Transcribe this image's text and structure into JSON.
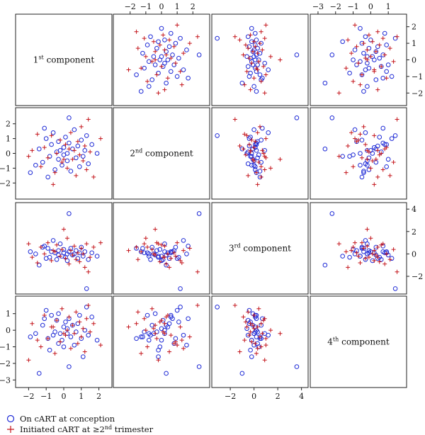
{
  "chart_data": {
    "type": "scatter",
    "title": "",
    "layout": "scatterplot-matrix",
    "variables": [
      {
        "name": "1st",
        "sup": "st",
        "num": "1",
        "label": "component",
        "range": [
          -2.5,
          2.5
        ],
        "ticks": [
          -2,
          -1,
          0,
          1,
          2
        ]
      },
      {
        "name": "2nd",
        "sup": "nd",
        "num": "2",
        "label": "component",
        "range": [
          -2.8,
          2.8
        ],
        "ticks": [
          -2,
          -1,
          0,
          1,
          2
        ]
      },
      {
        "name": "3rd",
        "sup": "rd",
        "num": "3",
        "label": "component",
        "range": [
          -3.2,
          4.2
        ],
        "ticks": [
          -2,
          0,
          2,
          4
        ]
      },
      {
        "name": "4th",
        "sup": "th",
        "num": "4",
        "label": "component",
        "range": [
          -3.2,
          1.8
        ],
        "ticks": [
          -3,
          -2,
          -1,
          0,
          1
        ]
      }
    ],
    "legend": {
      "placement": "bottom-left",
      "items": [
        {
          "label": "On cART at conception",
          "marker": "circle",
          "color": "#1f2bd6"
        },
        {
          "label_prefix": "Initiated cART at ≥2",
          "label_sup": "nd",
          "label_suffix": " trimester",
          "marker": "plus",
          "color": "#c4161c"
        }
      ]
    },
    "series": [
      {
        "name": "On cART at conception",
        "points": [
          [
            -1.6,
            -0.8,
            0.0,
            -0.2
          ],
          [
            -1.4,
            0.3,
            -1.0,
            -2.6
          ],
          [
            -1.2,
            -0.6,
            0.6,
            0.3
          ],
          [
            -1.0,
            1.0,
            -0.4,
            1.2
          ],
          [
            -0.9,
            -1.6,
            0.5,
            -0.5
          ],
          [
            -0.8,
            -0.2,
            -0.3,
            -1.2
          ],
          [
            -0.7,
            0.6,
            0.2,
            0.9
          ],
          [
            -0.6,
            1.4,
            1.2,
            -0.3
          ],
          [
            -0.5,
            -1.1,
            0.1,
            -0.1
          ],
          [
            -0.4,
            0.1,
            -0.5,
            0.6
          ],
          [
            -0.3,
            0.8,
            0.3,
            -0.8
          ],
          [
            -0.3,
            -0.4,
            -0.1,
            1.0
          ],
          [
            -0.2,
            0.2,
            0.9,
            -0.2
          ],
          [
            -0.1,
            -0.8,
            -0.2,
            -0.6
          ],
          [
            0.0,
            0.4,
            0.1,
            0.2
          ],
          [
            0.0,
            -0.1,
            0.4,
            -1.0
          ],
          [
            0.1,
            1.1,
            -0.3,
            0.5
          ],
          [
            0.2,
            -0.5,
            0.0,
            -0.2
          ],
          [
            0.2,
            0.0,
            -0.6,
            0.1
          ],
          [
            0.3,
            0.7,
            0.2,
            0.7
          ],
          [
            0.4,
            -1.2,
            0.5,
            -0.4
          ],
          [
            0.5,
            0.3,
            -0.1,
            0.3
          ],
          [
            0.6,
            1.6,
            0.0,
            -0.9
          ],
          [
            0.7,
            -0.3,
            0.3,
            -0.1
          ],
          [
            0.8,
            0.5,
            -0.4,
            0.4
          ],
          [
            0.9,
            -0.9,
            0.1,
            0.9
          ],
          [
            1.0,
            0.9,
            0.6,
            -0.5
          ],
          [
            1.1,
            -0.2,
            -0.2,
            -1.6
          ],
          [
            1.2,
            0.2,
            0.2,
            0.0
          ],
          [
            1.4,
            -0.7,
            -0.5,
            -0.3
          ],
          [
            1.6,
            0.6,
            0.1,
            0.8
          ],
          [
            1.9,
            0.0,
            -0.2,
            -0.6
          ],
          [
            -1.9,
            -1.3,
            0.2,
            -0.4
          ],
          [
            -1.1,
            1.7,
            0.7,
            0.7
          ],
          [
            0.3,
            2.4,
            3.6,
            -2.2
          ],
          [
            1.3,
            1.2,
            -3.1,
            1.4
          ]
        ]
      },
      {
        "name": "Initiated cART at ≥2nd trimester",
        "points": [
          [
            -1.8,
            0.2,
            -0.3,
            0.4
          ],
          [
            -1.3,
            -0.9,
            0.6,
            -1.0
          ],
          [
            -1.1,
            0.4,
            0.0,
            0.9
          ],
          [
            -0.9,
            -0.3,
            1.0,
            -0.5
          ],
          [
            -0.7,
            1.2,
            -0.6,
            0.2
          ],
          [
            -0.5,
            -1.3,
            0.2,
            -1.4
          ],
          [
            -0.4,
            0.0,
            0.8,
            0.6
          ],
          [
            -0.2,
            0.9,
            -0.2,
            -0.7
          ],
          [
            -0.1,
            -0.6,
            0.4,
            1.3
          ],
          [
            0.1,
            0.6,
            -0.4,
            -0.3
          ],
          [
            0.2,
            -1.0,
            1.4,
            0.0
          ],
          [
            0.3,
            0.3,
            -0.9,
            0.8
          ],
          [
            0.4,
            1.4,
            0.3,
            -1.1
          ],
          [
            0.5,
            -0.4,
            -0.1,
            0.3
          ],
          [
            0.6,
            0.2,
            0.7,
            -0.2
          ],
          [
            0.7,
            -1.5,
            -0.5,
            1.1
          ],
          [
            0.8,
            0.8,
            0.1,
            -0.8
          ],
          [
            0.9,
            -0.1,
            -0.7,
            0.5
          ],
          [
            1.0,
            1.8,
            0.5,
            -0.4
          ],
          [
            1.1,
            -0.5,
            0.0,
            0.1
          ],
          [
            1.2,
            0.5,
            -1.2,
            -1.3
          ],
          [
            1.3,
            -1.1,
            0.9,
            0.7
          ],
          [
            1.5,
            0.1,
            -0.3,
            -0.1
          ],
          [
            1.7,
            -1.6,
            0.6,
            0.4
          ],
          [
            2.1,
            1.0,
            1.0,
            -0.9
          ],
          [
            -1.5,
            1.3,
            -0.8,
            -0.6
          ],
          [
            -0.6,
            -2.1,
            0.3,
            0.2
          ],
          [
            0.0,
            -0.4,
            2.2,
            -0.2
          ],
          [
            1.4,
            2.3,
            -1.6,
            1.5
          ],
          [
            -2.0,
            -0.2,
            0.9,
            -1.8
          ]
        ]
      }
    ]
  }
}
